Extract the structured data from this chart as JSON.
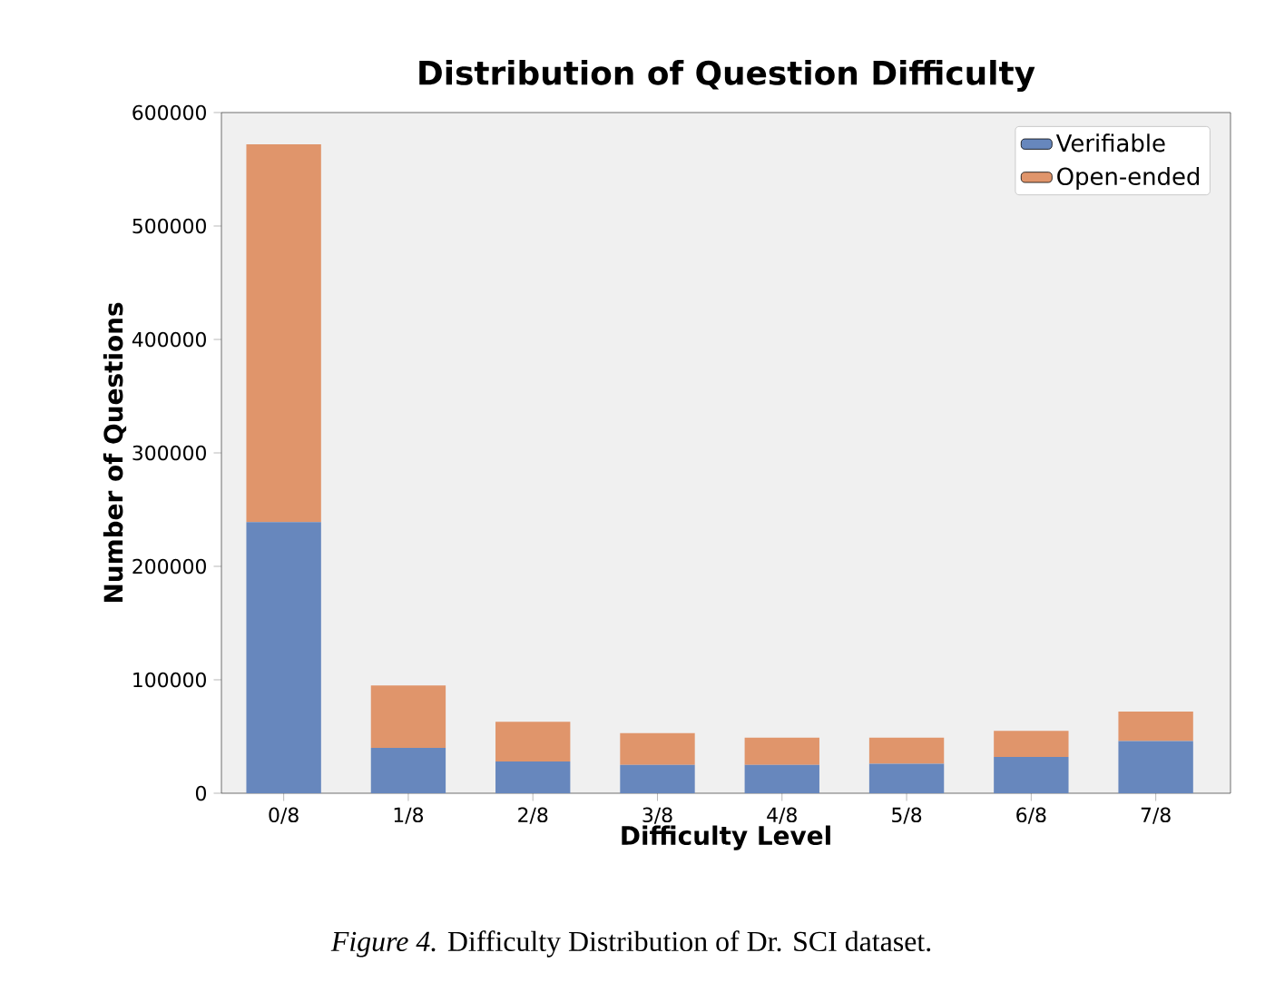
{
  "chart_data": {
    "type": "bar",
    "title": "Distribution of Question Difficulty",
    "xlabel": "Difficulty Level",
    "ylabel": "Number of Questions",
    "categories": [
      "0/8",
      "1/8",
      "2/8",
      "3/8",
      "4/8",
      "5/8",
      "6/8",
      "7/8"
    ],
    "series": [
      {
        "name": "Verifiable",
        "color": "#6787bd",
        "values": [
          239000,
          40000,
          28000,
          25000,
          25000,
          26000,
          32000,
          46000
        ]
      },
      {
        "name": "Open-ended",
        "color": "#e0956b",
        "values": [
          333000,
          55000,
          35000,
          28000,
          24000,
          23000,
          23000,
          26000
        ]
      }
    ],
    "stacked": true,
    "ylim": [
      0,
      600000
    ],
    "yticks": [
      0,
      100000,
      200000,
      300000,
      400000,
      500000,
      600000
    ],
    "legend": "top right",
    "grid": false,
    "annotations": [
      "*Figure 4.* Difficulty Distribution of Dr. SCI dataset."
    ]
  }
}
